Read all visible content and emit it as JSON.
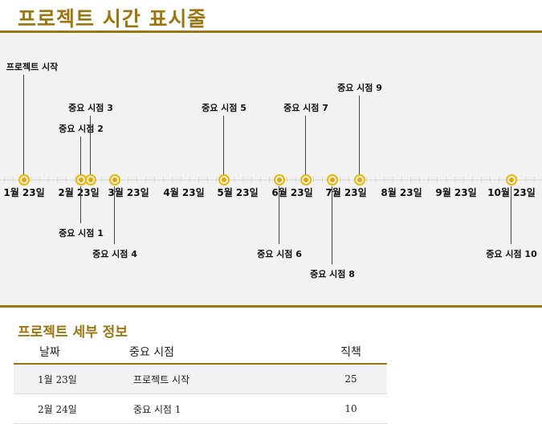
{
  "title": "프로젝트 시간 표시줄",
  "timeline": {
    "months": [
      "1월 23일",
      "2월 23일",
      "3월 23일",
      "4월 23일",
      "5월 23일",
      "6월 23일",
      "7월 23일",
      "8월 23일",
      "9월 23일",
      "10월 23일"
    ],
    "milestones": [
      "프로젝트 시작",
      "중요 시점 1",
      "중요 시점 2",
      "중요 시점 3",
      "중요 시점 4",
      "중요 시점 5",
      "중요 시점 6",
      "중요 시점 7",
      "중요 시점 8",
      "중요 시점 9",
      "중요 시점 10"
    ],
    "marker_color": "#e8b800"
  },
  "details": {
    "title": "프로젝트 세부 정보",
    "headers": [
      "날짜",
      "중요 시점",
      "직책"
    ],
    "rows": [
      [
        "1월 23일",
        "프로젝트 시작",
        "25"
      ],
      [
        "2월 24일",
        "중요 시점 1",
        "10"
      ]
    ]
  },
  "accent": "#9c7612"
}
